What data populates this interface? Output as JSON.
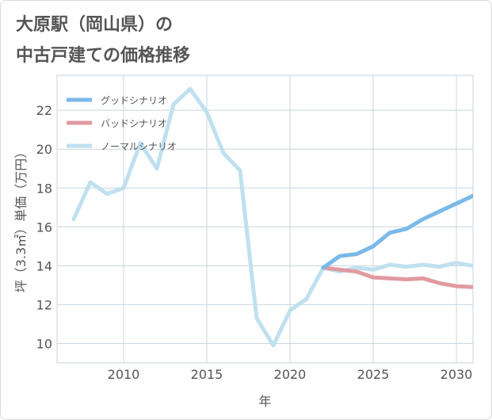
{
  "title": {
    "line1": "大原駅（岡山県）の",
    "line2": "中古戸建ての価格推移"
  },
  "chart_data": {
    "type": "line",
    "xlabel": "年",
    "ylabel": "坪（3.3㎡）単価（万円）",
    "xlim": [
      2006,
      2031
    ],
    "ylim": [
      9,
      23.8
    ],
    "xticks": [
      2010,
      2015,
      2020,
      2025,
      2030
    ],
    "yticks": [
      10,
      12,
      14,
      16,
      18,
      20,
      22
    ],
    "grid": true,
    "legend_position": "top-left",
    "series": [
      {
        "name": "グッドシナリオ",
        "color": "#7ab9e9",
        "x": [
          2022,
          2023,
          2024,
          2025,
          2026,
          2027,
          2028,
          2029,
          2030,
          2031
        ],
        "y": [
          13.9,
          14.5,
          14.6,
          15.0,
          15.7,
          15.9,
          16.4,
          16.8,
          17.2,
          17.6
        ]
      },
      {
        "name": "バッドシナリオ",
        "color": "#e09aa0",
        "x": [
          2022,
          2023,
          2024,
          2025,
          2026,
          2027,
          2028,
          2029,
          2030,
          2031
        ],
        "y": [
          13.9,
          13.8,
          13.7,
          13.4,
          13.35,
          13.3,
          13.35,
          13.1,
          12.95,
          12.9
        ]
      },
      {
        "name": "ノーマルシナリオ",
        "color": "#bfe0ef",
        "x": [
          2007,
          2008,
          2009,
          2010,
          2011,
          2012,
          2013,
          2014,
          2015,
          2016,
          2017,
          2018,
          2019,
          2020,
          2021,
          2022,
          2023,
          2024,
          2025,
          2026,
          2027,
          2028,
          2029,
          2030,
          2031
        ],
        "y": [
          16.4,
          18.3,
          17.7,
          18.0,
          20.3,
          19.0,
          22.3,
          23.1,
          21.9,
          19.8,
          18.9,
          11.3,
          9.9,
          11.7,
          12.3,
          13.9,
          13.7,
          13.9,
          13.8,
          14.05,
          13.95,
          14.05,
          13.95,
          14.15,
          14.0
        ]
      }
    ]
  }
}
